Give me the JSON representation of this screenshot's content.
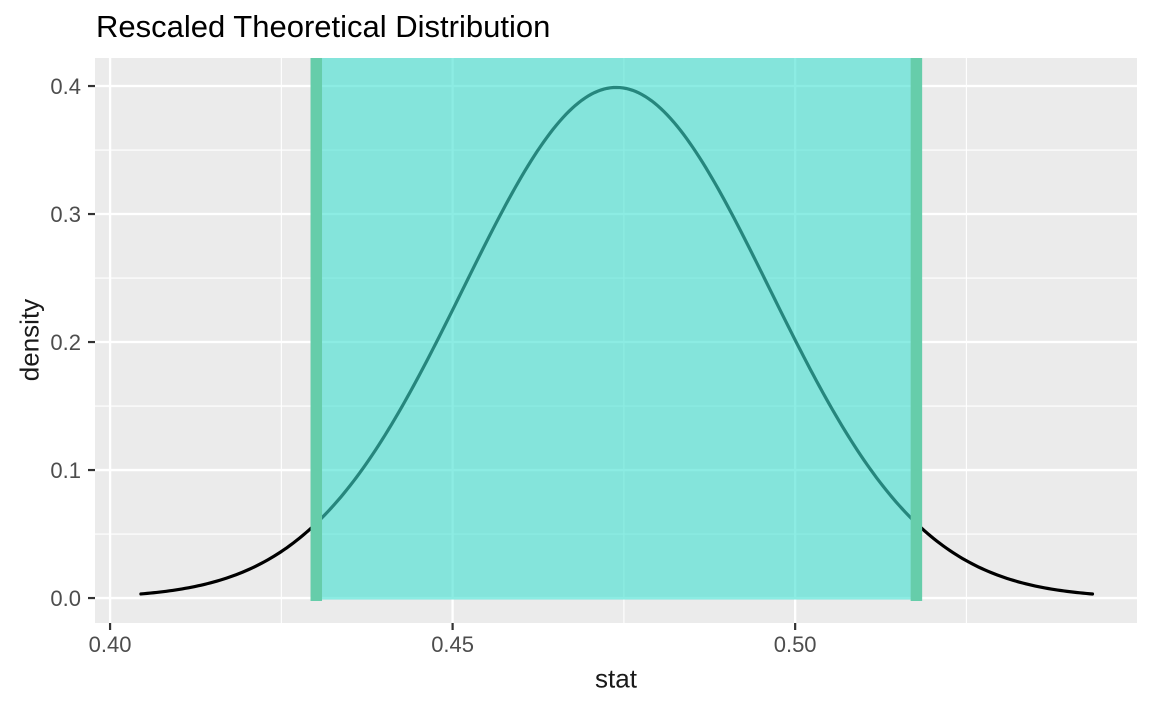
{
  "title": "Rescaled Theoretical Distribution",
  "axes": {
    "x_label": "stat",
    "y_label": "density"
  },
  "chart_data": {
    "type": "area",
    "title": "Rescaled Theoretical Distribution",
    "xlabel": "stat",
    "ylabel": "density",
    "xlim": [
      0.3978,
      0.5499
    ],
    "ylim": [
      -0.0195,
      0.4219
    ],
    "x_ticks": [
      0.4,
      0.45,
      0.5
    ],
    "x_tick_labels": [
      "0.40",
      "0.45",
      "0.50"
    ],
    "x_minor_ticks": [
      0.425,
      0.475,
      0.525
    ],
    "y_ticks": [
      0.0,
      0.1,
      0.2,
      0.3,
      0.4
    ],
    "y_tick_labels": [
      "0.0",
      "0.1",
      "0.2",
      "0.3",
      "0.4"
    ],
    "y_minor_ticks": [
      0.05,
      0.15,
      0.25,
      0.35
    ],
    "grid": true,
    "legend_position": "none",
    "curve": {
      "family": "normal-density-rescaled",
      "mean": 0.4739,
      "sd": 0.02234,
      "peak_density": 0.3989,
      "x_range": [
        0.4045,
        0.5434
      ],
      "sample_points": [
        {
          "x": 0.4045,
          "y": 0.0033
        },
        {
          "x": 0.4181,
          "y": 0.0175
        },
        {
          "x": 0.4292,
          "y": 0.054
        },
        {
          "x": 0.4404,
          "y": 0.1295
        },
        {
          "x": 0.4516,
          "y": 0.242
        },
        {
          "x": 0.4627,
          "y": 0.3521
        },
        {
          "x": 0.4739,
          "y": 0.3989
        },
        {
          "x": 0.4851,
          "y": 0.3521
        },
        {
          "x": 0.4962,
          "y": 0.242
        },
        {
          "x": 0.5074,
          "y": 0.1295
        },
        {
          "x": 0.5186,
          "y": 0.054
        },
        {
          "x": 0.5297,
          "y": 0.0175
        },
        {
          "x": 0.5434,
          "y": 0.0033
        }
      ]
    },
    "confidence_interval": {
      "lower": 0.4301,
      "upper": 0.5177,
      "endpoint_density": 0.058
    }
  },
  "colors": {
    "background": "#FFFFFF",
    "panel": "#EBEBEB",
    "grid": "#FFFFFF",
    "curve": "#000000",
    "ci_fill": "#40E0D0",
    "ci_fill_alpha": 0.6,
    "ci_line": "#66CDAA",
    "tick_label": "#4D4D4D",
    "axis_title": "#1A1A1A",
    "title_color": "#000000",
    "tick_mark": "#333333"
  }
}
